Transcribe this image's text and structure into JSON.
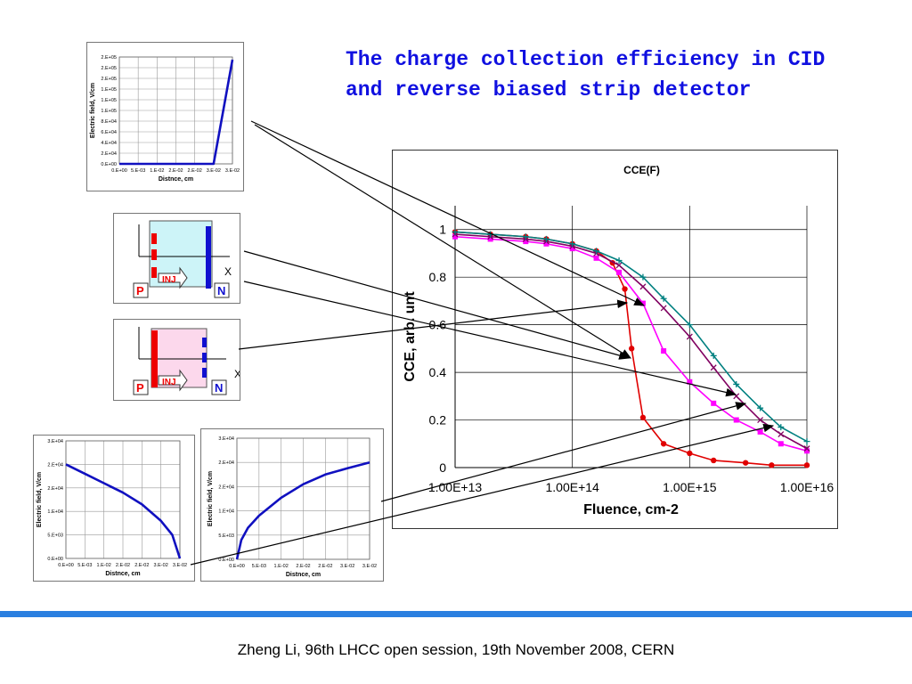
{
  "slide": {
    "title_line1": "The charge collection efficiency in CID",
    "title_line2": "and reverse biased strip detector",
    "footer": "Zheng Li, 96th LHCC open session, 19th November 2008, CERN",
    "accent_color": "#1010e0",
    "bar_color": "#2a7fe0"
  },
  "diagrams": [
    {
      "p_label": "P",
      "n_label": "N",
      "inj_label": "INJ",
      "axis_label": "X",
      "fill": "#cdf4f8"
    },
    {
      "p_label": "P",
      "n_label": "N",
      "inj_label": "INJ",
      "axis_label": "X",
      "fill": "#fcd8ec"
    }
  ],
  "chart_data": [
    {
      "type": "line",
      "title": "CCE(F)",
      "xlabel": "Fluence, cm-2",
      "ylabel": "CCE, arb. unt",
      "x_scale": "log",
      "xlim": [
        10000000000000.0,
        1e+16
      ],
      "ylim": [
        0,
        1.1
      ],
      "x_tick_labels": [
        "1.00E+13",
        "1.00E+14",
        "1.00E+15",
        "1.00E+16"
      ],
      "y_tick_labels": [
        "0",
        "0.2",
        "0.4",
        "0.6",
        "0.8",
        "1"
      ],
      "grid": true,
      "series": [
        {
          "color": "#e00000",
          "marker": "circle",
          "x": [
            10000000000000.0,
            20000000000000.0,
            40000000000000.0,
            60000000000000.0,
            100000000000000.0,
            160000000000000.0,
            220000000000000.0,
            280000000000000.0,
            320000000000000.0,
            400000000000000.0,
            600000000000000.0,
            1000000000000000.0,
            1600000000000000.0,
            3000000000000000.0,
            5000000000000000.0,
            1e+16
          ],
          "y": [
            0.99,
            0.98,
            0.97,
            0.96,
            0.94,
            0.91,
            0.86,
            0.75,
            0.5,
            0.21,
            0.1,
            0.06,
            0.03,
            0.02,
            0.01,
            0.01
          ]
        },
        {
          "color": "#ff00ff",
          "marker": "square",
          "x": [
            10000000000000.0,
            20000000000000.0,
            40000000000000.0,
            60000000000000.0,
            100000000000000.0,
            160000000000000.0,
            250000000000000.0,
            400000000000000.0,
            600000000000000.0,
            1000000000000000.0,
            1600000000000000.0,
            2500000000000000.0,
            4000000000000000.0,
            6000000000000000.0,
            1e+16
          ],
          "y": [
            0.97,
            0.96,
            0.95,
            0.94,
            0.92,
            0.88,
            0.82,
            0.69,
            0.49,
            0.36,
            0.27,
            0.2,
            0.15,
            0.1,
            0.07
          ]
        },
        {
          "color": "#800060",
          "marker": "x",
          "x": [
            10000000000000.0,
            20000000000000.0,
            40000000000000.0,
            60000000000000.0,
            100000000000000.0,
            160000000000000.0,
            250000000000000.0,
            400000000000000.0,
            600000000000000.0,
            1000000000000000.0,
            1600000000000000.0,
            2500000000000000.0,
            4000000000000000.0,
            6000000000000000.0,
            1e+16
          ],
          "y": [
            0.98,
            0.97,
            0.96,
            0.95,
            0.93,
            0.9,
            0.85,
            0.76,
            0.67,
            0.55,
            0.42,
            0.3,
            0.2,
            0.14,
            0.08
          ]
        },
        {
          "color": "#008080",
          "marker": "plus",
          "x": [
            10000000000000.0,
            20000000000000.0,
            40000000000000.0,
            60000000000000.0,
            100000000000000.0,
            160000000000000.0,
            250000000000000.0,
            400000000000000.0,
            600000000000000.0,
            1000000000000000.0,
            1600000000000000.0,
            2500000000000000.0,
            4000000000000000.0,
            6000000000000000.0,
            1e+16
          ],
          "y": [
            0.99,
            0.98,
            0.97,
            0.96,
            0.94,
            0.91,
            0.87,
            0.8,
            0.71,
            0.6,
            0.47,
            0.35,
            0.25,
            0.17,
            0.11
          ]
        }
      ]
    },
    {
      "type": "line",
      "xlabel": "Distnce, cm",
      "ylabel": "Electric field, V/cm",
      "x_tick_labels": [
        "0.E+00",
        "5.E-03",
        "1.E-02",
        "2.E-02",
        "2.E-02",
        "3.E-02",
        "3.E-02"
      ],
      "y_tick_labels": [
        "0.E+00",
        "2.E+04",
        "4.E+04",
        "6.E+04",
        "8.E+04",
        "1.E+05",
        "1.E+05",
        "1.E+05",
        "2.E+05",
        "2.E+05",
        "2.E+05"
      ],
      "xlim": [
        0,
        0.03
      ],
      "ylim": [
        0,
        200000
      ],
      "series": [
        {
          "color": "#1010c0",
          "x": [
            0,
            0.025,
            0.03
          ],
          "y": [
            0,
            0,
            195000
          ]
        }
      ]
    },
    {
      "type": "line",
      "xlabel": "Distnce, cm",
      "ylabel": "Electric field, V/cm",
      "x_tick_labels": [
        "0.E+00",
        "5.E-03",
        "1.E-02",
        "2.E-02",
        "2.E-02",
        "3.E-02",
        "3.E-02"
      ],
      "y_tick_labels": [
        "0.E+00",
        "5.E+03",
        "1.E+04",
        "2.E+04",
        "2.E+04",
        "3.E+04"
      ],
      "xlim": [
        0,
        0.03
      ],
      "ylim": [
        0,
        25000
      ],
      "series": [
        {
          "color": "#1010c0",
          "x": [
            0,
            0.005,
            0.01,
            0.015,
            0.02,
            0.025,
            0.028,
            0.03
          ],
          "y": [
            20000,
            18000,
            16000,
            14000,
            11500,
            8000,
            5000,
            0
          ]
        }
      ]
    },
    {
      "type": "line",
      "xlabel": "Distnce, cm",
      "ylabel": "Electric field, V/cm",
      "x_tick_labels": [
        "0.E+00",
        "5.E-03",
        "1.E-02",
        "2.E-02",
        "2.E-02",
        "3.E-02",
        "3.E-02"
      ],
      "y_tick_labels": [
        "0.E+00",
        "5.E+03",
        "1.E+04",
        "2.E+04",
        "2.E+04",
        "3.E+04"
      ],
      "xlim": [
        0,
        0.03
      ],
      "ylim": [
        0,
        25000
      ],
      "series": [
        {
          "color": "#1010c0",
          "x": [
            0,
            0.001,
            0.0025,
            0.005,
            0.01,
            0.015,
            0.02,
            0.025,
            0.03
          ],
          "y": [
            0,
            4000,
            6500,
            9000,
            12700,
            15500,
            17500,
            18800,
            20000
          ]
        }
      ]
    }
  ]
}
